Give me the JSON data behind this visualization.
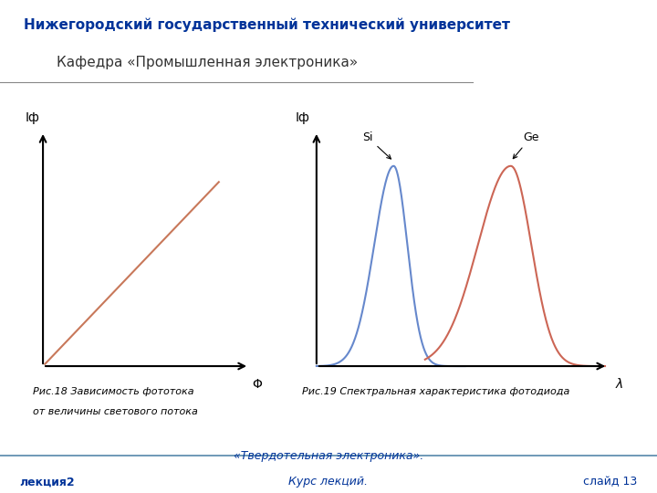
{
  "header_bg_color": "#b8d4e8",
  "header_text1": "Нижегородский государственный технический университет",
  "header_text2": "Кафедра «Промышленная электроника»",
  "header_text1_color": "#003399",
  "header_text2_color": "#333333",
  "footer_bg_color": "#b8d4e8",
  "footer_text_center_top": "«Твердотельная электроника».",
  "footer_text_left": "лекция2",
  "footer_text_center": "Курс лекций.",
  "footer_text_right": "слайд 13",
  "footer_text_color": "#003399",
  "body_bg_color": "#ffffff",
  "fig18_caption_line1": "Рис.18 Зависимость фототока",
  "fig18_caption_line2": "от величины светового потока",
  "fig19_caption": "Рис.19 Спектральная характеристика фотодиода",
  "line_color_fig18": "#c8785a",
  "line_color_si": "#6688cc",
  "line_color_ge": "#cc6655"
}
